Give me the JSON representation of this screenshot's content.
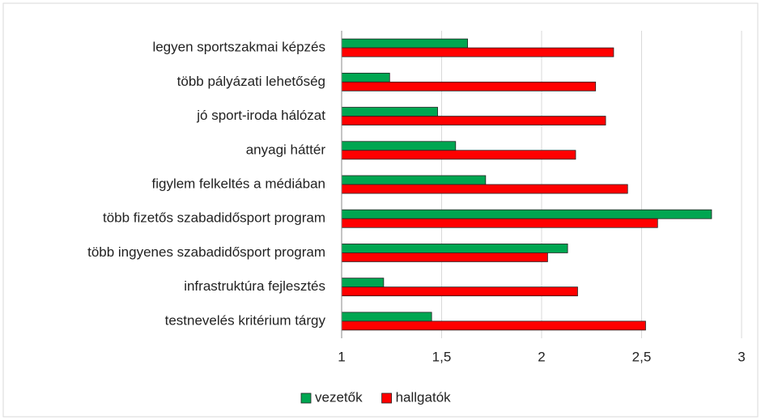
{
  "chart_data": {
    "type": "bar",
    "orientation": "horizontal",
    "categories": [
      "legyen sportszakmai képzés",
      "több pályázati lehetőség",
      "jó sport-iroda hálózat",
      "anyagi háttér",
      "figylem felkeltés a médiában",
      "több fizetős szabadidősport program",
      "több ingyenes szabadidősport program",
      "infrastruktúra fejlesztés",
      "testnevelés kritérium tárgy"
    ],
    "series": [
      {
        "name": "vezetők",
        "color": "#00a651",
        "values": [
          1.63,
          1.24,
          1.48,
          1.57,
          1.72,
          2.85,
          2.13,
          1.21,
          1.45
        ]
      },
      {
        "name": "hallgatók",
        "color": "#ff0000",
        "values": [
          2.36,
          2.27,
          2.32,
          2.17,
          2.43,
          2.58,
          2.03,
          2.18,
          2.52
        ]
      }
    ],
    "xlim": [
      1,
      3
    ],
    "xticks": [
      1,
      {
        "value": 1.5,
        "label": "1,5"
      },
      2,
      {
        "value": 2.5,
        "label": "2,5"
      },
      3
    ],
    "grid": true,
    "legend": "bottom"
  }
}
